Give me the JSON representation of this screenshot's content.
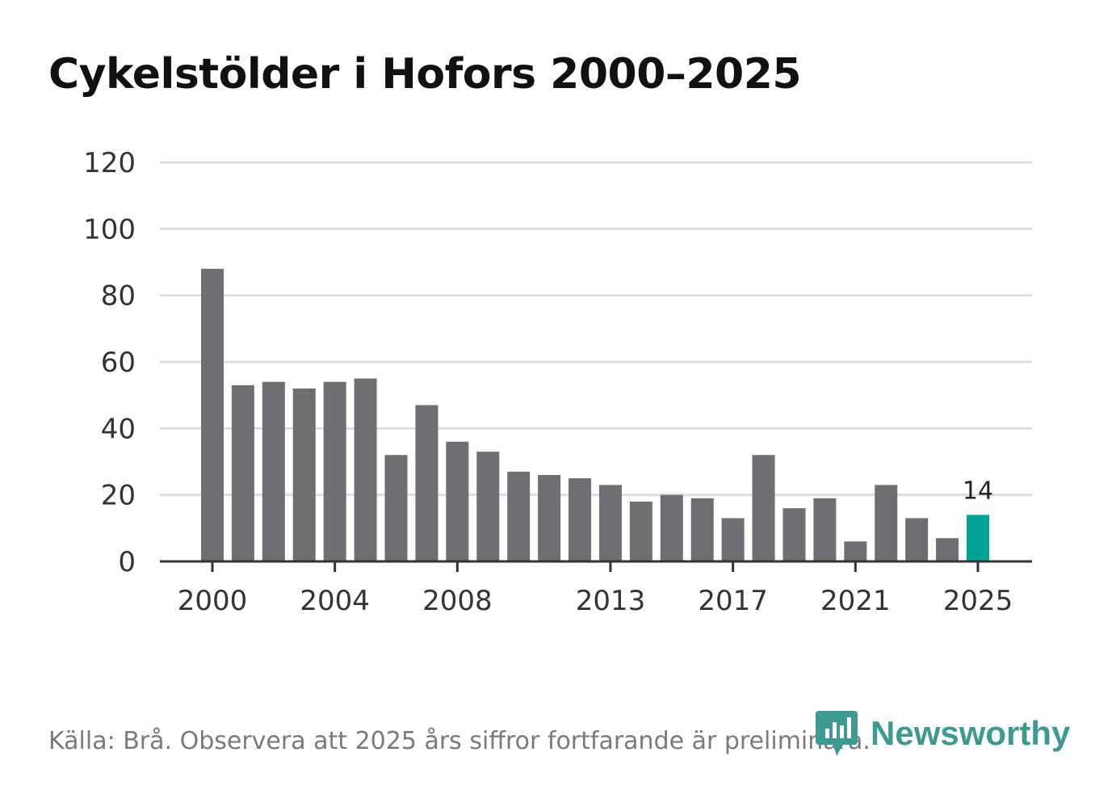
{
  "chart_data": {
    "type": "bar",
    "title": "Cykelstölder i Hofors 2000–2025",
    "xlabel": "",
    "ylabel": "",
    "categories": [
      "2000",
      "2001",
      "2002",
      "2003",
      "2004",
      "2005",
      "2006",
      "2007",
      "2008",
      "2009",
      "2010",
      "2011",
      "2012",
      "2013",
      "2014",
      "2015",
      "2016",
      "2017",
      "2018",
      "2019",
      "2020",
      "2021",
      "2022",
      "2023",
      "2024",
      "2025"
    ],
    "values": [
      88,
      53,
      54,
      52,
      54,
      55,
      32,
      47,
      36,
      33,
      27,
      26,
      25,
      23,
      18,
      20,
      19,
      13,
      32,
      16,
      19,
      6,
      23,
      13,
      7,
      14
    ],
    "ylim": [
      0,
      120
    ],
    "yticks": [
      0,
      20,
      40,
      60,
      80,
      100,
      120
    ],
    "xtick_labels": [
      "2000",
      "2004",
      "2008",
      "2013",
      "2017",
      "2021",
      "2025"
    ],
    "highlight": {
      "category": "2025",
      "label": "14"
    },
    "colors": {
      "bar": "#6f6e73",
      "highlight": "#00a496",
      "grid": "#dddddd",
      "axis": "#333333"
    },
    "grid": true
  },
  "footer": {
    "source": "Källa: Brå. Observera att 2025 års siffror fortfarande är preliminära.",
    "brand": "Newsworthy",
    "brand_icon": "bar-chart-speech-bubble-icon"
  }
}
